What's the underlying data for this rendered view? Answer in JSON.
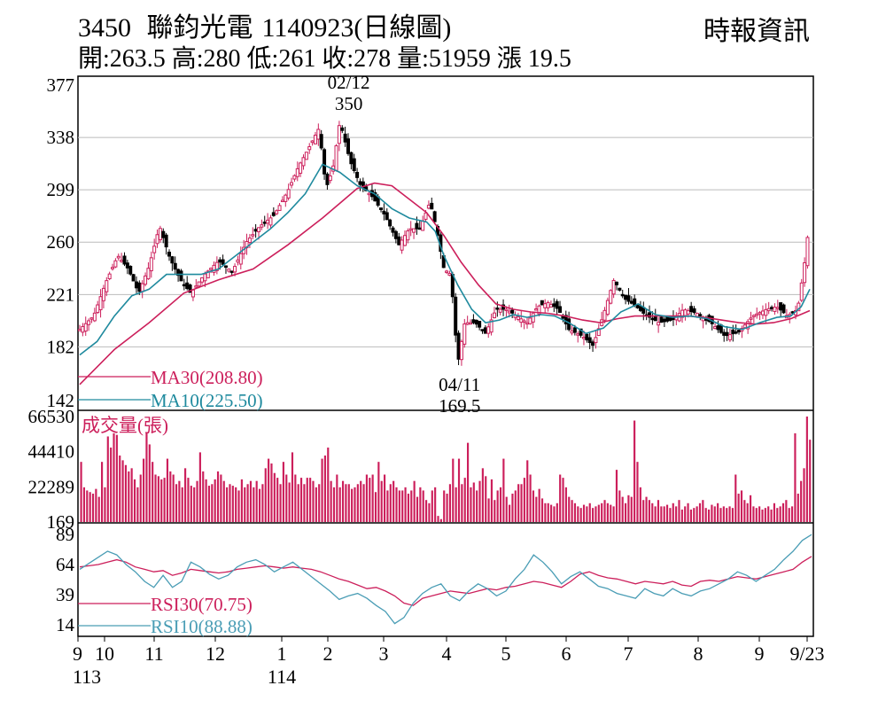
{
  "header": {
    "code": "3450",
    "name": "聯鈞光電",
    "date_label": "1140923(日線圖)",
    "source": "時報資訊",
    "ohlc_text": "開:263.5 高:280 低:261 收:278 量:51959 漲 19.5"
  },
  "colors": {
    "candle": "#cc1f5b",
    "ma30": "#cc1f5b",
    "ma10": "#1f8a9e",
    "rsi30": "#cc1f5b",
    "rsi10": "#4a9db5",
    "grid": "#bbbbbb"
  },
  "chart_data": [
    {
      "type": "candlestick",
      "panel": "price",
      "y_ticks": [
        "377",
        "338",
        "299",
        "260",
        "221",
        "182",
        "142"
      ],
      "ylim": [
        142,
        377
      ],
      "grid": true,
      "annotations": [
        {
          "date_label": "02/12",
          "value_label": "350",
          "value": 350
        },
        {
          "date_label": "04/11",
          "value_label": "169.5",
          "value": 169.5
        }
      ],
      "legend": [
        {
          "label": "MA30(208.80)",
          "color": "#cc1f5b"
        },
        {
          "label": "MA10(225.50)",
          "color": "#1f8a9e"
        }
      ],
      "price_path": [
        [
          0,
          195
        ],
        [
          8,
          205
        ],
        [
          15,
          230
        ],
        [
          22,
          250
        ],
        [
          28,
          240
        ],
        [
          34,
          222
        ],
        [
          40,
          242
        ],
        [
          46,
          272
        ],
        [
          52,
          248
        ],
        [
          58,
          232
        ],
        [
          64,
          222
        ],
        [
          72,
          236
        ],
        [
          80,
          246
        ],
        [
          88,
          238
        ],
        [
          96,
          260
        ],
        [
          104,
          272
        ],
        [
          112,
          280
        ],
        [
          120,
          298
        ],
        [
          126,
          316
        ],
        [
          132,
          330
        ],
        [
          138,
          345
        ],
        [
          142,
          300
        ],
        [
          146,
          315
        ],
        [
          150,
          350
        ],
        [
          156,
          320
        ],
        [
          162,
          302
        ],
        [
          168,
          295
        ],
        [
          176,
          280
        ],
        [
          184,
          258
        ],
        [
          190,
          270
        ],
        [
          196,
          270
        ],
        [
          202,
          290
        ],
        [
          206,
          268
        ],
        [
          210,
          240
        ],
        [
          214,
          236
        ],
        [
          218,
          169.5
        ],
        [
          222,
          200
        ],
        [
          228,
          200
        ],
        [
          234,
          192
        ],
        [
          240,
          210
        ],
        [
          246,
          210
        ],
        [
          252,
          205
        ],
        [
          258,
          200
        ],
        [
          264,
          212
        ],
        [
          270,
          215
        ],
        [
          276,
          210
        ],
        [
          282,
          195
        ],
        [
          290,
          190
        ],
        [
          296,
          183
        ],
        [
          302,
          206
        ],
        [
          308,
          232
        ],
        [
          314,
          218
        ],
        [
          320,
          213
        ],
        [
          326,
          206
        ],
        [
          334,
          200
        ],
        [
          342,
          202
        ],
        [
          348,
          210
        ],
        [
          356,
          207
        ],
        [
          364,
          200
        ],
        [
          372,
          190
        ],
        [
          380,
          193
        ],
        [
          388,
          205
        ],
        [
          396,
          210
        ],
        [
          402,
          212
        ],
        [
          408,
          205
        ],
        [
          414,
          210
        ],
        [
          418,
          245
        ],
        [
          421,
          278
        ]
      ],
      "ma10": [
        [
          0,
          176
        ],
        [
          10,
          186
        ],
        [
          20,
          205
        ],
        [
          30,
          220
        ],
        [
          40,
          225
        ],
        [
          50,
          236
        ],
        [
          60,
          236
        ],
        [
          70,
          236
        ],
        [
          80,
          240
        ],
        [
          90,
          250
        ],
        [
          100,
          260
        ],
        [
          110,
          270
        ],
        [
          120,
          282
        ],
        [
          130,
          296
        ],
        [
          140,
          318
        ],
        [
          150,
          312
        ],
        [
          160,
          302
        ],
        [
          170,
          296
        ],
        [
          180,
          285
        ],
        [
          190,
          278
        ],
        [
          200,
          275
        ],
        [
          205,
          268
        ],
        [
          210,
          250
        ],
        [
          218,
          228
        ],
        [
          226,
          210
        ],
        [
          234,
          200
        ],
        [
          242,
          202
        ],
        [
          250,
          206
        ],
        [
          258,
          204
        ],
        [
          266,
          206
        ],
        [
          274,
          205
        ],
        [
          282,
          200
        ],
        [
          292,
          192
        ],
        [
          302,
          196
        ],
        [
          312,
          208
        ],
        [
          322,
          214
        ],
        [
          332,
          206
        ],
        [
          342,
          204
        ],
        [
          352,
          205
        ],
        [
          362,
          203
        ],
        [
          372,
          197
        ],
        [
          382,
          195
        ],
        [
          392,
          200
        ],
        [
          402,
          204
        ],
        [
          410,
          205
        ],
        [
          416,
          212
        ],
        [
          421,
          225
        ]
      ],
      "ma30": [
        [
          0,
          154
        ],
        [
          20,
          180
        ],
        [
          40,
          200
        ],
        [
          60,
          222
        ],
        [
          80,
          232
        ],
        [
          100,
          240
        ],
        [
          120,
          258
        ],
        [
          140,
          278
        ],
        [
          160,
          300
        ],
        [
          170,
          304
        ],
        [
          180,
          302
        ],
        [
          190,
          292
        ],
        [
          200,
          282
        ],
        [
          210,
          265
        ],
        [
          220,
          245
        ],
        [
          230,
          228
        ],
        [
          240,
          214
        ],
        [
          250,
          210
        ],
        [
          260,
          208
        ],
        [
          270,
          207
        ],
        [
          280,
          205
        ],
        [
          290,
          202
        ],
        [
          300,
          200
        ],
        [
          310,
          203
        ],
        [
          320,
          205
        ],
        [
          330,
          205
        ],
        [
          340,
          205
        ],
        [
          350,
          205
        ],
        [
          360,
          204
        ],
        [
          370,
          202
        ],
        [
          380,
          200
        ],
        [
          390,
          199
        ],
        [
          400,
          200
        ],
        [
          410,
          203
        ],
        [
          421,
          209
        ]
      ]
    },
    {
      "type": "bar",
      "panel": "volume",
      "title": "成交量(張)",
      "y_ticks": [
        "66530",
        "44410",
        "22289",
        "169"
      ],
      "ylim": [
        169,
        66530
      ],
      "values": [
        38000,
        22000,
        20000,
        19000,
        18000,
        21000,
        16000,
        38000,
        22000,
        54000,
        47000,
        56000,
        55000,
        42000,
        39000,
        36000,
        32000,
        34000,
        27000,
        22000,
        30000,
        40000,
        56000,
        49000,
        38000,
        30000,
        29000,
        27000,
        28000,
        40000,
        32000,
        30000,
        24000,
        26000,
        22000,
        34000,
        28000,
        23000,
        22000,
        26000,
        44000,
        32000,
        27000,
        23000,
        24000,
        27000,
        32000,
        30000,
        26000,
        22000,
        24000,
        23000,
        22000,
        20000,
        27000,
        22000,
        24000,
        26000,
        22000,
        26000,
        21000,
        24000,
        34000,
        40000,
        37000,
        31000,
        28000,
        24000,
        38000,
        30000,
        25000,
        44000,
        30000,
        24000,
        28000,
        24000,
        28000,
        28000,
        26000,
        22000,
        24000,
        40000,
        42000,
        47000,
        26000,
        22000,
        30000,
        22000,
        26000,
        24000,
        24000,
        21000,
        22000,
        24000,
        26000,
        24000,
        30000,
        28000,
        30000,
        19000,
        38000,
        26000,
        30000,
        20000,
        24000,
        26000,
        22000,
        20000,
        20000,
        22000,
        18000,
        20000,
        26000,
        16000,
        22000,
        20000,
        14000,
        12000,
        20000,
        22000,
        4000,
        2000,
        20000,
        18000,
        24000,
        40000,
        22000,
        40000,
        24000,
        28000,
        50000,
        22000,
        25000,
        20000,
        26000,
        34000,
        29000,
        15000,
        27000,
        14000,
        20000,
        22000,
        40000,
        16000,
        11000,
        18000,
        20000,
        24000,
        24000,
        28000,
        39000,
        30000,
        20000,
        16000,
        21000,
        15000,
        12000,
        12000,
        11000,
        10000,
        12000,
        30000,
        28000,
        22000,
        16000,
        14000,
        12000,
        10000,
        9000,
        11000,
        10000,
        12000,
        9000,
        10000,
        11000,
        12000,
        14000,
        12000,
        11000,
        10000,
        33000,
        20000,
        16000,
        12000,
        17000,
        16000,
        64000,
        38000,
        22000,
        14000,
        16000,
        14000,
        12000,
        10000,
        14000,
        10000,
        10000,
        11000,
        9000,
        12000,
        10000,
        14000,
        8000,
        10000,
        12000,
        8000,
        9000,
        10000,
        12000,
        14000,
        9000,
        8000,
        11000,
        10000,
        12000,
        9000,
        10000,
        9000,
        10000,
        9000,
        30000,
        18000,
        20000,
        14000,
        12000,
        17000,
        10000,
        9000,
        10000,
        8000,
        9000,
        10000,
        8000,
        12000,
        9000,
        10000,
        12000,
        14000,
        9000,
        10000,
        56000,
        18000,
        26000,
        34000,
        70000,
        51959
      ]
    },
    {
      "type": "line",
      "panel": "rsi",
      "y_ticks": [
        "89",
        "64",
        "39",
        "14"
      ],
      "ylim": [
        14,
        89
      ],
      "series": [
        {
          "name": "RSI30(70.75)",
          "color": "#cc1f5b",
          "values": [
            62,
            63,
            64,
            66,
            68,
            66,
            62,
            60,
            58,
            59,
            55,
            57,
            60,
            59,
            58,
            57,
            58,
            60,
            61,
            62,
            63,
            62,
            61,
            62,
            61,
            60,
            58,
            55,
            52,
            50,
            47,
            44,
            45,
            42,
            38,
            32,
            30,
            36,
            38,
            40,
            42,
            41,
            40,
            42,
            44,
            43,
            45,
            46,
            48,
            50,
            49,
            47,
            45,
            50,
            56,
            58,
            55,
            53,
            52,
            50,
            48,
            50,
            49,
            48,
            50,
            47,
            46,
            50,
            51,
            50,
            52,
            54,
            53,
            52,
            54,
            56,
            58,
            60,
            66,
            70.75
          ]
        },
        {
          "name": "RSI10(88.88)",
          "color": "#4a9db5",
          "values": [
            60,
            65,
            70,
            75,
            72,
            64,
            58,
            50,
            45,
            55,
            45,
            50,
            66,
            62,
            56,
            52,
            55,
            62,
            66,
            68,
            64,
            58,
            62,
            66,
            60,
            54,
            48,
            42,
            35,
            38,
            40,
            36,
            30,
            25,
            15,
            20,
            32,
            40,
            45,
            48,
            38,
            34,
            42,
            48,
            44,
            38,
            42,
            52,
            60,
            72,
            66,
            58,
            48,
            54,
            58,
            52,
            46,
            44,
            40,
            38,
            36,
            44,
            40,
            38,
            44,
            40,
            38,
            42,
            44,
            48,
            52,
            58,
            55,
            50,
            55,
            60,
            68,
            75,
            84,
            88.88
          ]
        }
      ]
    },
    {
      "type": "axis",
      "panel": "x",
      "x_ticks": [
        "9",
        "10",
        "11",
        "12",
        "1",
        "2",
        "3",
        "4",
        "5",
        "6",
        "7",
        "8",
        "9",
        "9/23"
      ],
      "year_labels": [
        "113",
        "114"
      ]
    }
  ]
}
